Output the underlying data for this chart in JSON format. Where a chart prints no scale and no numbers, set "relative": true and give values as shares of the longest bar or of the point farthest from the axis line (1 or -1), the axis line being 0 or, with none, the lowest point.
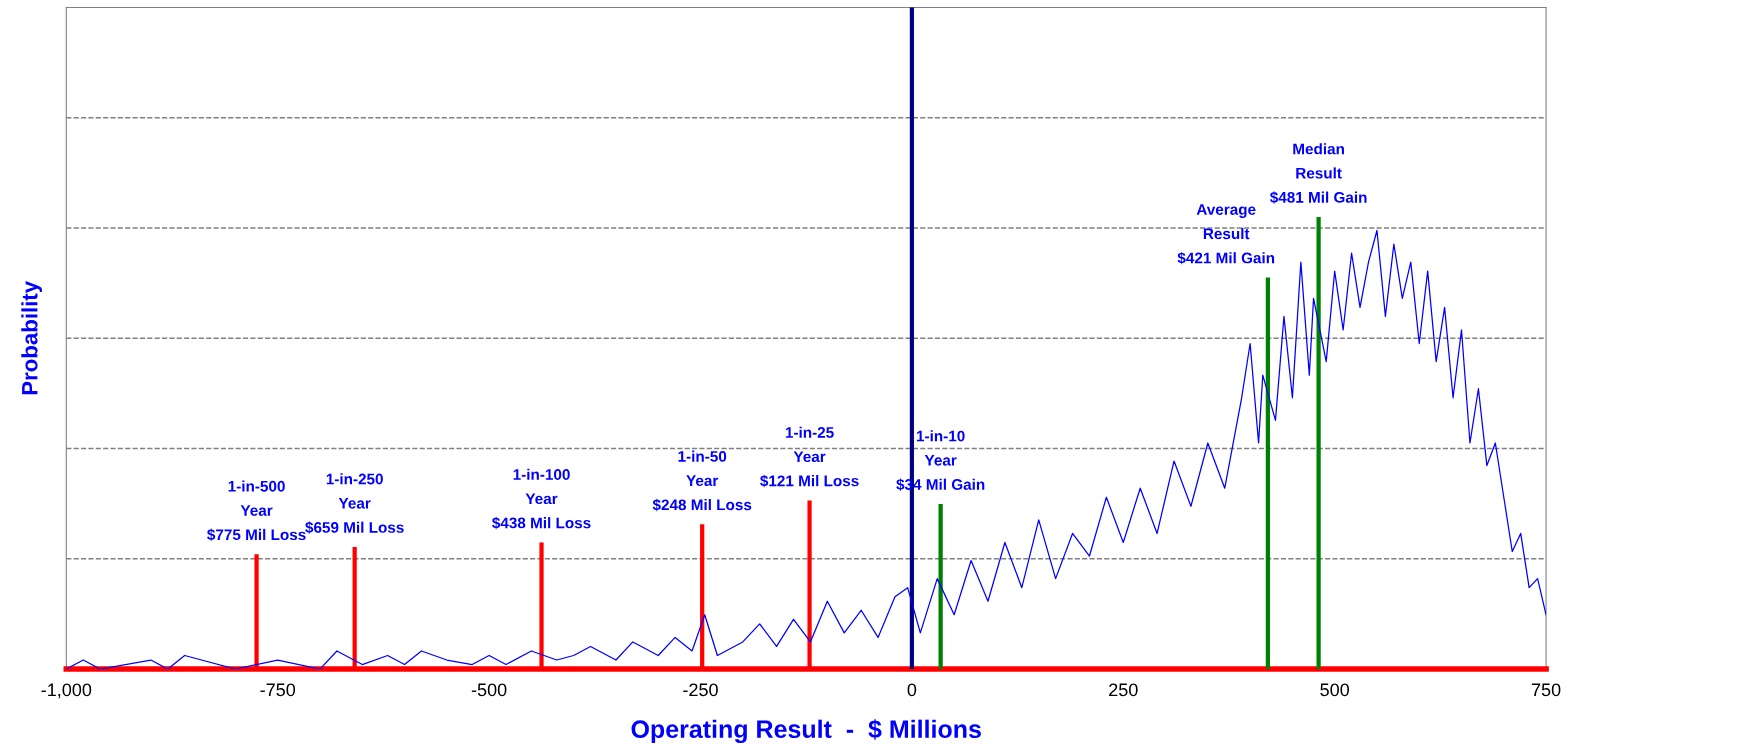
{
  "chart_data": {
    "type": "line",
    "xlabel": "Operating Result  -  $ Millions",
    "ylabel": "Probability",
    "relative": true,
    "grid": "y",
    "legend": false,
    "marker": "none",
    "line_style": "solid",
    "xlim": [
      -1000,
      750
    ],
    "xticks": [
      {
        "value": -1000,
        "label": "-1,000"
      },
      {
        "value": -750,
        "label": "-750"
      },
      {
        "value": -500,
        "label": "-500"
      },
      {
        "value": -250,
        "label": "-250"
      },
      {
        "value": 0,
        "label": "0"
      },
      {
        "value": 250,
        "label": "250"
      },
      {
        "value": 500,
        "label": "500"
      },
      {
        "value": 750,
        "label": "750"
      }
    ],
    "ref_lines": [
      {
        "axis": "x",
        "value": 0,
        "color": "#000080"
      }
    ],
    "series": [
      {
        "color": "#0000ff",
        "x": [
          -1000,
          -980,
          -960,
          -900,
          -880,
          -860,
          -800,
          -750,
          -700,
          -680,
          -650,
          -620,
          -600,
          -580,
          -550,
          -520,
          -500,
          -480,
          -450,
          -420,
          -400,
          -380,
          -350,
          -330,
          -300,
          -280,
          -260,
          -245,
          -230,
          -200,
          -180,
          -160,
          -140,
          -120,
          -100,
          -80,
          -60,
          -40,
          -20,
          -5,
          10,
          30,
          50,
          70,
          90,
          110,
          130,
          150,
          170,
          190,
          210,
          230,
          250,
          270,
          290,
          310,
          330,
          350,
          370,
          390,
          400,
          410,
          415,
          430,
          440,
          450,
          460,
          470,
          475,
          490,
          500,
          510,
          520,
          530,
          540,
          550,
          560,
          570,
          580,
          590,
          600,
          610,
          620,
          630,
          640,
          650,
          660,
          670,
          680,
          690,
          700,
          710,
          720,
          730,
          740,
          750
        ],
        "values": [
          0,
          0.02,
          0,
          0.02,
          0,
          0.03,
          0,
          0.02,
          0,
          0.04,
          0.01,
          0.03,
          0.01,
          0.04,
          0.02,
          0.01,
          0.03,
          0.01,
          0.04,
          0.02,
          0.03,
          0.05,
          0.02,
          0.06,
          0.03,
          0.07,
          0.04,
          0.12,
          0.03,
          0.06,
          0.1,
          0.05,
          0.11,
          0.06,
          0.15,
          0.08,
          0.13,
          0.07,
          0.16,
          0.18,
          0.08,
          0.2,
          0.12,
          0.24,
          0.15,
          0.28,
          0.18,
          0.33,
          0.2,
          0.3,
          0.25,
          0.38,
          0.28,
          0.4,
          0.3,
          0.46,
          0.36,
          0.5,
          0.4,
          0.6,
          0.72,
          0.5,
          0.65,
          0.55,
          0.78,
          0.6,
          0.9,
          0.65,
          0.82,
          0.68,
          0.88,
          0.75,
          0.92,
          0.8,
          0.9,
          0.97,
          0.78,
          0.94,
          0.82,
          0.9,
          0.72,
          0.88,
          0.68,
          0.8,
          0.6,
          0.75,
          0.5,
          0.62,
          0.45,
          0.5,
          0.38,
          0.26,
          0.3,
          0.18,
          0.2,
          0.12
        ]
      },
      {
        "type": "bar",
        "x": [
          -775,
          -659,
          -438,
          -248,
          -121,
          34,
          421,
          481
        ],
        "values": [
          0.254,
          0.27,
          0.28,
          0.32,
          0.373,
          0.365,
          0.866,
          1.0
        ],
        "colors": [
          "#ff0000",
          "#ff0000",
          "#ff0000",
          "#ff0000",
          "#ff0000",
          "#008000",
          "#008000",
          "#008000"
        ]
      }
    ],
    "annotations": [
      {
        "text": "1-in-500\nYear\n$775 Mil Loss",
        "x": -775,
        "y": 0.254
      },
      {
        "text": "1-in-250\nYear\n$659 Mil Loss",
        "x": -659,
        "y": 0.27
      },
      {
        "text": "1-in-100\nYear\n$438 Mil Loss",
        "x": -438,
        "y": 0.28
      },
      {
        "text": "1-in-50\nYear\n$248 Mil Loss",
        "x": -248,
        "y": 0.32
      },
      {
        "text": "1-in-25\nYear\n$121 Mil Loss",
        "x": -121,
        "y": 0.373
      },
      {
        "text": "1-in-10\nYear\n$34 Mil Gain",
        "x": 34,
        "y": 0.365
      },
      {
        "text": "Average\nResult\n$421 Mil Gain",
        "x": 421,
        "y": 0.866
      },
      {
        "text": "Median\nResult\n$481 Mil Gain",
        "x": 481,
        "y": 1.0
      }
    ]
  }
}
